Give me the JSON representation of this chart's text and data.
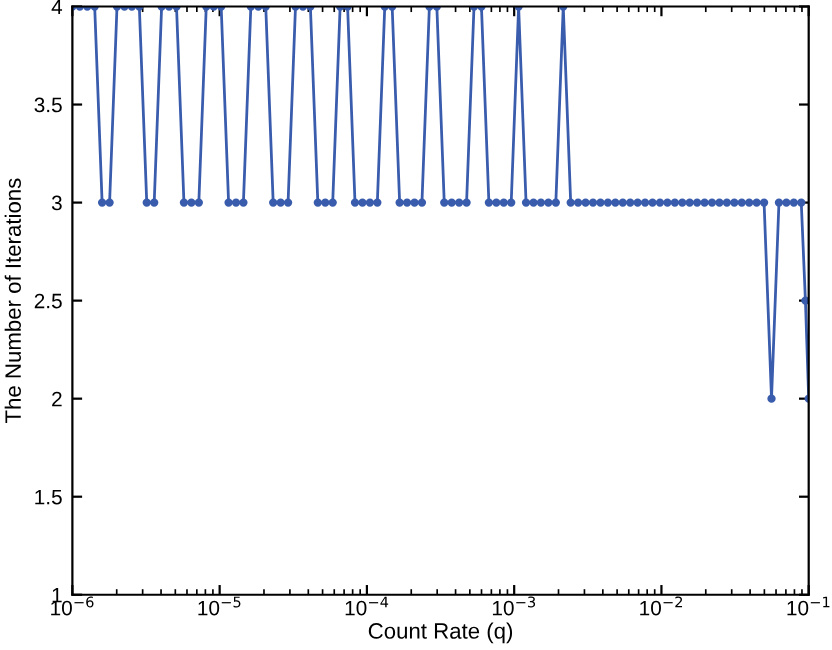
{
  "chart_data": {
    "type": "line",
    "xlabel": "Count Rate (q)",
    "ylabel": "The Number of Iterations",
    "log": "x",
    "xlim": [
      1e-06,
      0.1
    ],
    "ylim": [
      1,
      4
    ],
    "xticks": [
      {
        "value": 1e-06,
        "label": "10$^{−6}$"
      },
      {
        "value": 1e-05,
        "label": "10$^{−5}$"
      },
      {
        "value": 0.0001,
        "label": "10$^{−4}$"
      },
      {
        "value": 0.001,
        "label": "10$^{−3}$"
      },
      {
        "value": 0.01,
        "label": "10$^{−2}$"
      },
      {
        "value": 0.1,
        "label": "10$^{−1}$"
      }
    ],
    "yticks": [
      1,
      1.5,
      2,
      2.5,
      3,
      3.5,
      4
    ],
    "grid": false,
    "marker": "circle",
    "line_style": "solid",
    "series": [
      {
        "color": "#3a5cad",
        "x": [
          1e-06,
          1.123e-06,
          1.262e-06,
          1.417e-06,
          1.592e-06,
          1.789e-06,
          2.009e-06,
          2.257e-06,
          2.535e-06,
          2.848e-06,
          3.199e-06,
          3.594e-06,
          4.037e-06,
          4.535e-06,
          5.094e-06,
          5.722e-06,
          6.428e-06,
          7.221e-06,
          8.111e-06,
          9.112e-06,
          1.024e-05,
          1.15e-05,
          1.292e-05,
          1.45e-05,
          1.629e-05,
          1.831e-05,
          2.056e-05,
          2.31e-05,
          2.595e-05,
          2.915e-05,
          3.274e-05,
          3.678e-05,
          4.132e-05,
          4.642e-05,
          5.214e-05,
          5.857e-05,
          6.579e-05,
          7.391e-05,
          8.302e-05,
          9.326e-05,
          0.0001048,
          0.0001177,
          0.0001322,
          0.0001484,
          0.0001668,
          0.0001874,
          0.0002105,
          0.0002364,
          0.0002656,
          0.0002984,
          0.0003351,
          0.0003765,
          0.0004229,
          0.0004751,
          0.0005336,
          0.0005994,
          0.0006734,
          0.0007565,
          0.0008497,
          0.0009546,
          0.001072,
          0.001204,
          0.001353,
          0.001519,
          0.001707,
          0.001918,
          0.002154,
          0.00242,
          0.002718,
          0.003054,
          0.00343,
          0.003854,
          0.004329,
          0.004863,
          0.005462,
          0.006136,
          0.006893,
          0.007743,
          0.008697,
          0.009771,
          0.01098,
          0.01233,
          0.01385,
          0.01555,
          0.01747,
          0.01963,
          0.02205,
          0.02477,
          0.02782,
          0.03126,
          0.03511,
          0.03944,
          0.04431,
          0.04977,
          0.05591,
          0.0628,
          0.07055,
          0.07925,
          0.08902,
          0.095,
          0.1
        ],
        "values": [
          4,
          4,
          4,
          4,
          3,
          3,
          4,
          4,
          4,
          4,
          3,
          3,
          4,
          4,
          4,
          3,
          3,
          3,
          4,
          4,
          4,
          3,
          3,
          3,
          4,
          4,
          4,
          3,
          3,
          3,
          4,
          4,
          4,
          3,
          3,
          3,
          4,
          4,
          3,
          3,
          3,
          3,
          4,
          4,
          3,
          3,
          3,
          3,
          4,
          4,
          3,
          3,
          3,
          3,
          4,
          4,
          3,
          3,
          3,
          3,
          4,
          3,
          3,
          3,
          3,
          3,
          4,
          3,
          3,
          3,
          3,
          3,
          3,
          3,
          3,
          3,
          3,
          3,
          3,
          3,
          3,
          3,
          3,
          3,
          3,
          3,
          3,
          3,
          3,
          3,
          3,
          3,
          3,
          3,
          2,
          3,
          3,
          3,
          3,
          2.5,
          2
        ]
      }
    ]
  }
}
